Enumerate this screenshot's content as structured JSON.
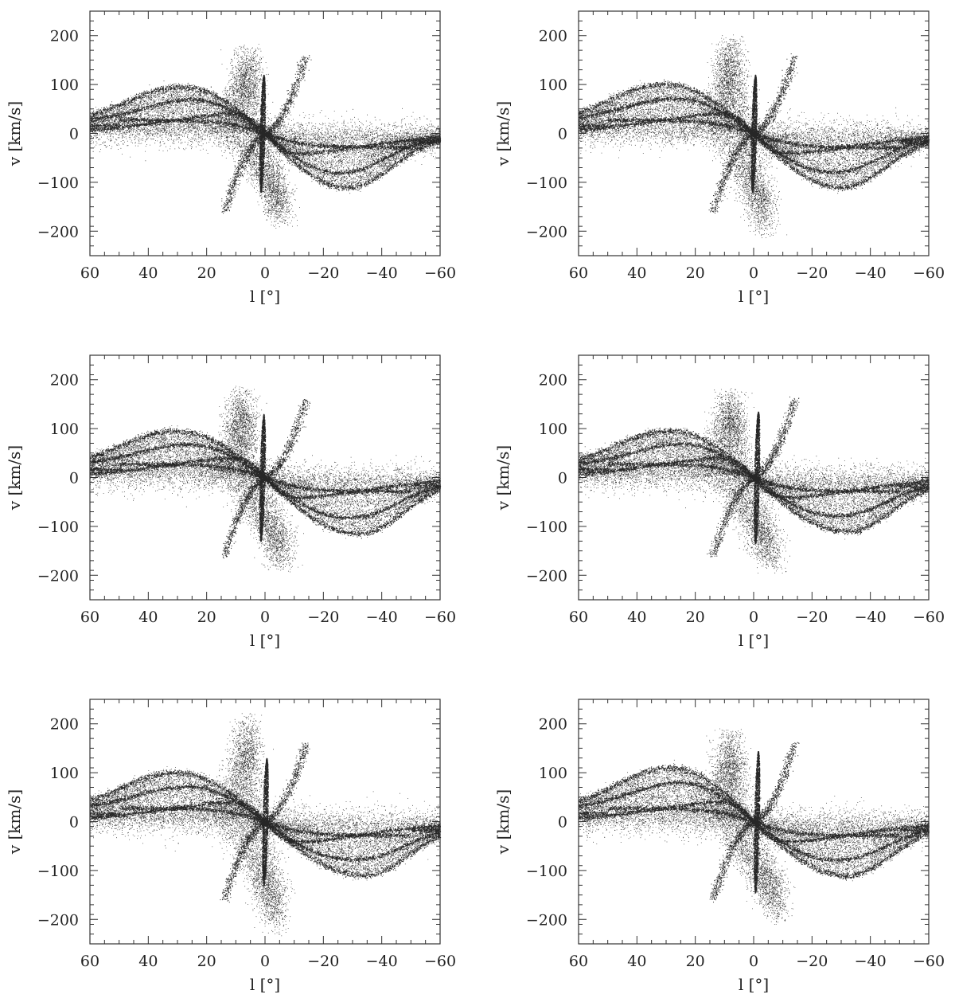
{
  "chart_data": [
    {
      "type": "scatter",
      "panel": "top-left",
      "xlabel": "l [°]",
      "ylabel": "v [km/s]",
      "xlim": [
        60,
        -60
      ],
      "ylim": [
        -250,
        250
      ],
      "xticks": [
        "60",
        "40",
        "20",
        "0",
        "−20",
        "−40",
        "−60"
      ],
      "yticks": [
        "200",
        "100",
        "0",
        "−100",
        "−200"
      ],
      "grid": false,
      "legend": "none",
      "point_color": "#000000",
      "features": {
        "peak_upper": {
          "l": 6,
          "v": 185
        },
        "peak_lower": {
          "l": -6,
          "v": -195
        },
        "hump_pos": {
          "l": 28,
          "v": 95
        },
        "hump_neg": {
          "l": -28,
          "v": -110
        },
        "nuclear_bar": {
          "l": 1,
          "v_range": [
            -120,
            120
          ]
        }
      }
    },
    {
      "type": "scatter",
      "panel": "top-right",
      "xlabel": "l [°]",
      "ylabel": "v [km/s]",
      "xlim": [
        60,
        -60
      ],
      "ylim": [
        -250,
        250
      ],
      "xticks": [
        "60",
        "40",
        "20",
        "0",
        "−20",
        "−40",
        "−60"
      ],
      "yticks": [
        "200",
        "100",
        "0",
        "−100",
        "−200"
      ],
      "grid": false,
      "legend": "none",
      "point_color": "#000000",
      "features": {
        "peak_upper": {
          "l": 8,
          "v": 205
        },
        "peak_lower": {
          "l": -4,
          "v": -215
        },
        "hump_pos": {
          "l": 30,
          "v": 100
        },
        "hump_neg": {
          "l": -30,
          "v": -110
        },
        "nuclear_bar": {
          "l": 0,
          "v_range": [
            -120,
            120
          ]
        }
      }
    },
    {
      "type": "scatter",
      "panel": "middle-left",
      "xlabel": "l [°]",
      "ylabel": "v [km/s]",
      "xlim": [
        60,
        -60
      ],
      "ylim": [
        -250,
        250
      ],
      "xticks": [
        "60",
        "40",
        "20",
        "0",
        "−20",
        "−40",
        "−60"
      ],
      "yticks": [
        "200",
        "100",
        "0",
        "−100",
        "−200"
      ],
      "grid": false,
      "legend": "none",
      "point_color": "#000000",
      "features": {
        "peak_upper": {
          "l": 8,
          "v": 190
        },
        "peak_lower": {
          "l": -6,
          "v": -195
        },
        "hump_pos": {
          "l": 30,
          "v": 95
        },
        "hump_neg": {
          "l": -32,
          "v": -115
        },
        "nuclear_bar": {
          "l": 1,
          "v_range": [
            -130,
            130
          ]
        }
      }
    },
    {
      "type": "scatter",
      "panel": "middle-right",
      "xlabel": "l [°]",
      "ylabel": "v [km/s]",
      "xlim": [
        60,
        -60
      ],
      "ylim": [
        -250,
        250
      ],
      "xticks": [
        "60",
        "40",
        "20",
        "0",
        "−20",
        "−40",
        "−60"
      ],
      "yticks": [
        "200",
        "100",
        "0",
        "−100",
        "−200"
      ],
      "grid": false,
      "legend": "none",
      "point_color": "#000000",
      "features": {
        "peak_upper": {
          "l": 8,
          "v": 185
        },
        "peak_lower": {
          "l": -6,
          "v": -200
        },
        "hump_pos": {
          "l": 28,
          "v": 95
        },
        "hump_neg": {
          "l": -32,
          "v": -110
        },
        "nuclear_bar": {
          "l": -1,
          "v_range": [
            -135,
            135
          ]
        }
      }
    },
    {
      "type": "scatter",
      "panel": "bottom-left",
      "xlabel": "l [°]",
      "ylabel": "v [km/s]",
      "xlim": [
        60,
        -60
      ],
      "ylim": [
        -250,
        250
      ],
      "xticks": [
        "60",
        "40",
        "20",
        "0",
        "−20",
        "−40",
        "−60"
      ],
      "yticks": [
        "200",
        "100",
        "0",
        "−100",
        "−200"
      ],
      "grid": false,
      "legend": "none",
      "point_color": "#000000",
      "features": {
        "peak_upper": {
          "l": 6,
          "v": 225
        },
        "peak_lower": {
          "l": -4,
          "v": -235
        },
        "hump_pos": {
          "l": 30,
          "v": 100
        },
        "hump_neg": {
          "l": -34,
          "v": -110
        },
        "nuclear_bar": {
          "l": 0,
          "v_range": [
            -130,
            130
          ]
        }
      }
    },
    {
      "type": "scatter",
      "panel": "bottom-right",
      "xlabel": "l [°]",
      "ylabel": "v [km/s]",
      "xlim": [
        60,
        -60
      ],
      "ylim": [
        -250,
        250
      ],
      "xticks": [
        "60",
        "40",
        "20",
        "0",
        "−20",
        "−40",
        "−60"
      ],
      "yticks": [
        "200",
        "100",
        "0",
        "−100",
        "−200"
      ],
      "grid": false,
      "legend": "none",
      "point_color": "#000000",
      "features": {
        "peak_upper": {
          "l": 8,
          "v": 195
        },
        "peak_lower": {
          "l": -8,
          "v": -210
        },
        "hump_pos": {
          "l": 28,
          "v": 110
        },
        "hump_neg": {
          "l": -32,
          "v": -110
        },
        "nuclear_bar": {
          "l": -1,
          "v_range": [
            -145,
            145
          ]
        }
      }
    }
  ]
}
